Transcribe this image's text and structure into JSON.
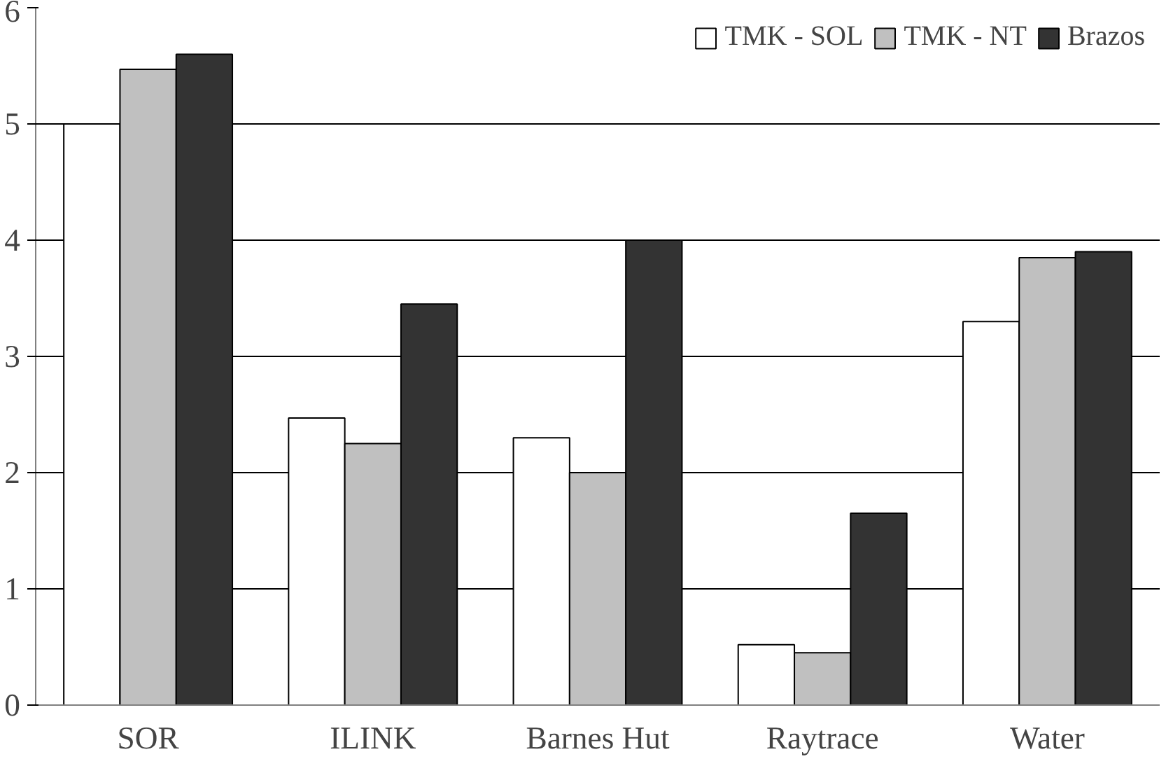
{
  "chart_data": {
    "type": "bar",
    "categories": [
      "SOR",
      "ILINK",
      "Barnes Hut",
      "Raytrace",
      "Water"
    ],
    "series": [
      {
        "name": "TMK - SOL",
        "color": "#ffffff",
        "values": [
          5.0,
          2.47,
          2.3,
          0.52,
          3.3
        ]
      },
      {
        "name": "TMK - NT",
        "color": "#c0c0c0",
        "values": [
          5.47,
          2.25,
          2.0,
          0.45,
          3.85
        ]
      },
      {
        "name": "Brazos",
        "color": "#333333",
        "values": [
          5.6,
          3.45,
          4.0,
          1.65,
          3.9
        ]
      }
    ],
    "ylim": [
      0,
      6
    ],
    "yticks": [
      0,
      1,
      2,
      3,
      4,
      5,
      6
    ],
    "grid": "y",
    "legend": "top right"
  }
}
